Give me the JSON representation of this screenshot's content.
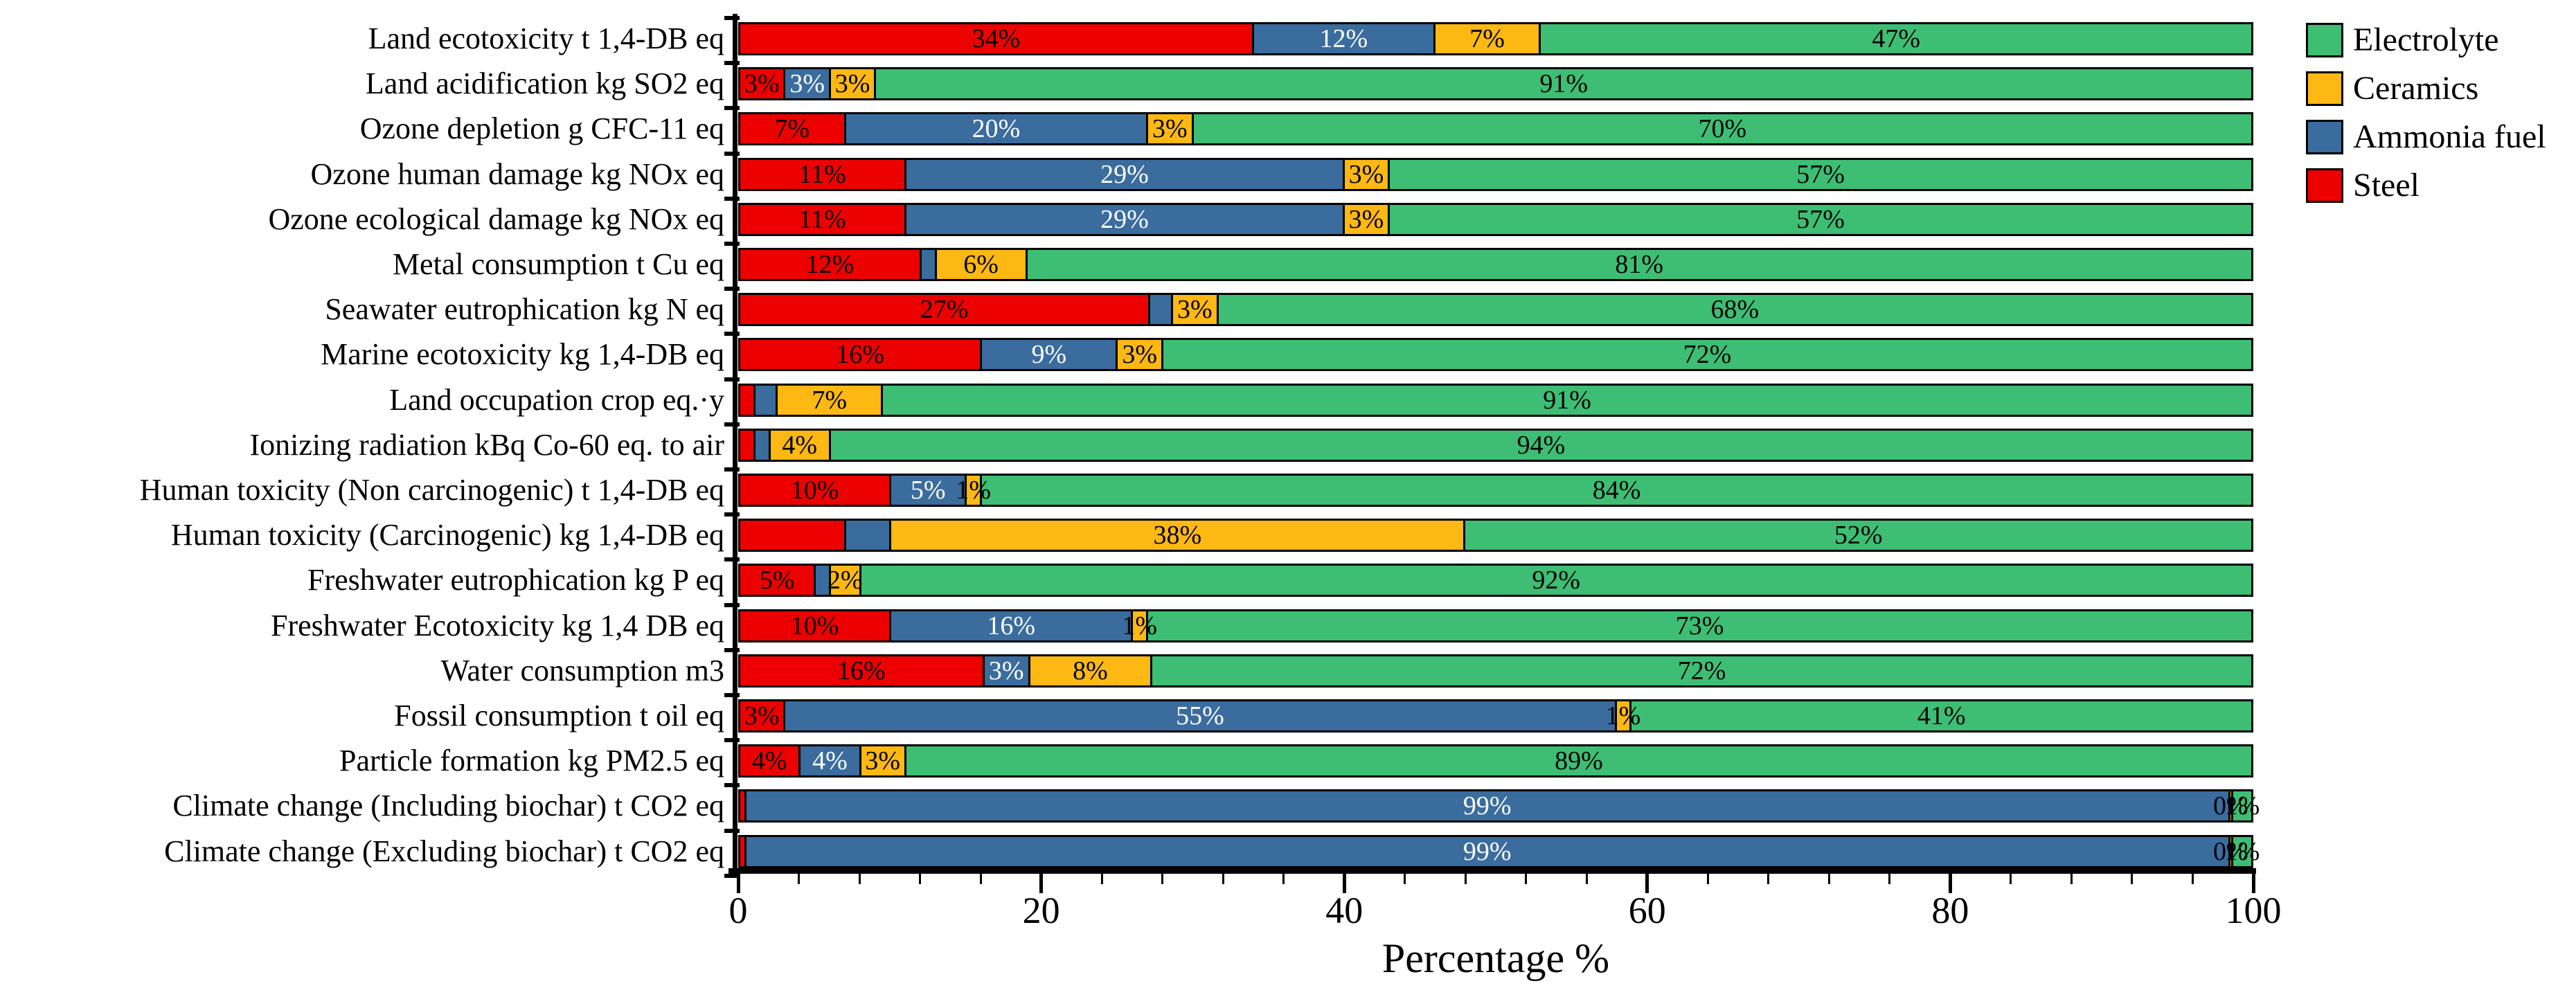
{
  "chart_data": {
    "type": "bar",
    "orientation": "horizontal",
    "stacked": true,
    "title": "",
    "xlabel": "Percentage %",
    "ylabel": "",
    "xlim": [
      0,
      100
    ],
    "x_major_ticks": [
      0,
      20,
      40,
      60,
      80,
      100
    ],
    "x_minor_tick_step": 4,
    "grid": false,
    "legend_position": "top-right",
    "series_order": [
      "steel",
      "ammonia",
      "ceramics",
      "electrolyte"
    ],
    "series_colors": {
      "steel": "#EC0000",
      "ammonia": "#3A6C9E",
      "ceramics": "#FDB813",
      "electrolyte": "#3DBE74"
    },
    "label_colors": {
      "steel": "#000000",
      "ammonia": "#FFFFFF",
      "ceramics": "#000000",
      "electrolyte": "#000000"
    },
    "legend": [
      {
        "name": "Electrolyte",
        "series": "electrolyte",
        "color": "#3DBE74"
      },
      {
        "name": "Ceramics",
        "series": "ceramics",
        "color": "#FDB813"
      },
      {
        "name": "Ammonia fuel",
        "series": "ammonia",
        "color": "#3A6C9E"
      },
      {
        "name": "Steel",
        "series": "steel",
        "color": "#EC0000"
      }
    ],
    "rows": [
      {
        "category": "Land ecotoxicity t 1,4-DB eq",
        "segments": [
          {
            "series": "steel",
            "value": 34,
            "label": "34%"
          },
          {
            "series": "ammonia",
            "value": 12,
            "label": "12%"
          },
          {
            "series": "ceramics",
            "value": 7,
            "label": "7%"
          },
          {
            "series": "electrolyte",
            "value": 47,
            "label": "47%"
          }
        ]
      },
      {
        "category": "Land acidification kg SO2 eq",
        "segments": [
          {
            "series": "steel",
            "value": 3,
            "label": "3%"
          },
          {
            "series": "ammonia",
            "value": 3,
            "label": "3%"
          },
          {
            "series": "ceramics",
            "value": 3,
            "label": "3%"
          },
          {
            "series": "electrolyte",
            "value": 91,
            "label": "91%"
          }
        ]
      },
      {
        "category": "Ozone depletion g CFC-11 eq",
        "segments": [
          {
            "series": "steel",
            "value": 7,
            "label": "7%"
          },
          {
            "series": "ammonia",
            "value": 20,
            "label": "20%"
          },
          {
            "series": "ceramics",
            "value": 3,
            "label": "3%"
          },
          {
            "series": "electrolyte",
            "value": 70,
            "label": "70%"
          }
        ]
      },
      {
        "category": "Ozone human damage kg NOx eq",
        "segments": [
          {
            "series": "steel",
            "value": 11,
            "label": "11%"
          },
          {
            "series": "ammonia",
            "value": 29,
            "label": "29%"
          },
          {
            "series": "ceramics",
            "value": 3,
            "label": "3%"
          },
          {
            "series": "electrolyte",
            "value": 57,
            "label": "57%"
          }
        ]
      },
      {
        "category": "Ozone ecological damage kg NOx eq",
        "segments": [
          {
            "series": "steel",
            "value": 11,
            "label": "11%"
          },
          {
            "series": "ammonia",
            "value": 29,
            "label": "29%"
          },
          {
            "series": "ceramics",
            "value": 3,
            "label": "3%"
          },
          {
            "series": "electrolyte",
            "value": 57,
            "label": "57%"
          }
        ]
      },
      {
        "category": "Metal consumption t Cu eq",
        "segments": [
          {
            "series": "steel",
            "value": 12,
            "label": "12%"
          },
          {
            "series": "ammonia",
            "value": 1,
            "label": ""
          },
          {
            "series": "ceramics",
            "value": 6,
            "label": "6%"
          },
          {
            "series": "electrolyte",
            "value": 81,
            "label": "81%"
          }
        ]
      },
      {
        "category": "Seawater eutrophication kg N eq",
        "segments": [
          {
            "series": "steel",
            "value": 27,
            "label": "27%"
          },
          {
            "series": "ammonia",
            "value": 1.5,
            "label": ""
          },
          {
            "series": "ceramics",
            "value": 3,
            "label": "3%"
          },
          {
            "series": "electrolyte",
            "value": 68,
            "label": "68%"
          }
        ]
      },
      {
        "category": "Marine ecotoxicity kg 1,4-DB eq",
        "segments": [
          {
            "series": "steel",
            "value": 16,
            "label": "16%"
          },
          {
            "series": "ammonia",
            "value": 9,
            "label": "9%"
          },
          {
            "series": "ceramics",
            "value": 3,
            "label": "3%"
          },
          {
            "series": "electrolyte",
            "value": 72,
            "label": "72%"
          }
        ]
      },
      {
        "category": "Land occupation crop eq.·y",
        "segments": [
          {
            "series": "steel",
            "value": 1,
            "label": ""
          },
          {
            "series": "ammonia",
            "value": 1.5,
            "label": ""
          },
          {
            "series": "ceramics",
            "value": 7,
            "label": "7%"
          },
          {
            "series": "electrolyte",
            "value": 91,
            "label": "91%"
          }
        ]
      },
      {
        "category": "Ionizing radiation kBq Co-60 eq. to air",
        "segments": [
          {
            "series": "steel",
            "value": 1,
            "label": ""
          },
          {
            "series": "ammonia",
            "value": 1,
            "label": ""
          },
          {
            "series": "ceramics",
            "value": 4,
            "label": "4%"
          },
          {
            "series": "electrolyte",
            "value": 94,
            "label": "94%"
          }
        ]
      },
      {
        "category": "Human toxicity (Non carcinogenic) t 1,4-DB eq",
        "segments": [
          {
            "series": "steel",
            "value": 10,
            "label": "10%"
          },
          {
            "series": "ammonia",
            "value": 5,
            "label": "5%"
          },
          {
            "series": "ceramics",
            "value": 1,
            "label": "1%"
          },
          {
            "series": "electrolyte",
            "value": 84,
            "label": "84%"
          }
        ]
      },
      {
        "category": "Human toxicity (Carcinogenic) kg 1,4-DB eq",
        "segments": [
          {
            "series": "steel",
            "value": 7,
            "label": ""
          },
          {
            "series": "ammonia",
            "value": 3,
            "label": ""
          },
          {
            "series": "ceramics",
            "value": 38,
            "label": "38%"
          },
          {
            "series": "electrolyte",
            "value": 52,
            "label": "52%"
          }
        ]
      },
      {
        "category": "Freshwater eutrophication kg P eq",
        "segments": [
          {
            "series": "steel",
            "value": 5,
            "label": "5%"
          },
          {
            "series": "ammonia",
            "value": 1,
            "label": ""
          },
          {
            "series": "ceramics",
            "value": 2,
            "label": "2%"
          },
          {
            "series": "electrolyte",
            "value": 92,
            "label": "92%"
          }
        ]
      },
      {
        "category": "Freshwater Ecotoxicity  kg 1,4 DB eq",
        "segments": [
          {
            "series": "steel",
            "value": 10,
            "label": "10%"
          },
          {
            "series": "ammonia",
            "value": 16,
            "label": "16%"
          },
          {
            "series": "ceramics",
            "value": 1,
            "label": "1%"
          },
          {
            "series": "electrolyte",
            "value": 73,
            "label": "73%"
          }
        ]
      },
      {
        "category": "Water consumption m3",
        "segments": [
          {
            "series": "steel",
            "value": 16,
            "label": "16%"
          },
          {
            "series": "ammonia",
            "value": 3,
            "label": "3%"
          },
          {
            "series": "ceramics",
            "value": 8,
            "label": "8%"
          },
          {
            "series": "electrolyte",
            "value": 72,
            "label": "72%"
          }
        ]
      },
      {
        "category": "Fossil consumption t oil eq",
        "segments": [
          {
            "series": "steel",
            "value": 3,
            "label": "3%"
          },
          {
            "series": "ammonia",
            "value": 55,
            "label": "55%"
          },
          {
            "series": "ceramics",
            "value": 1,
            "label": "1%"
          },
          {
            "series": "electrolyte",
            "value": 41,
            "label": "41%"
          }
        ]
      },
      {
        "category": "Particle formation kg PM2.5 eq",
        "segments": [
          {
            "series": "steel",
            "value": 4,
            "label": "4%"
          },
          {
            "series": "ammonia",
            "value": 4,
            "label": "4%"
          },
          {
            "series": "ceramics",
            "value": 3,
            "label": "3%"
          },
          {
            "series": "electrolyte",
            "value": 89,
            "label": "89%"
          }
        ]
      },
      {
        "category": "Climate change (Including biochar) t CO2 eq",
        "segments": [
          {
            "series": "steel",
            "value": 0.4,
            "label": ""
          },
          {
            "series": "ammonia",
            "value": 99,
            "label": "99%"
          },
          {
            "series": "ceramics",
            "value": 0.2,
            "label": "0%"
          },
          {
            "series": "electrolyte",
            "value": 1.2,
            "label": "1%"
          }
        ]
      },
      {
        "category": "Climate change (Excluding biochar) t CO2 eq",
        "segments": [
          {
            "series": "steel",
            "value": 0.4,
            "label": ""
          },
          {
            "series": "ammonia",
            "value": 99,
            "label": "99%"
          },
          {
            "series": "ceramics",
            "value": 0.2,
            "label": "0%"
          },
          {
            "series": "electrolyte",
            "value": 1.2,
            "label": "1%"
          }
        ]
      }
    ]
  }
}
